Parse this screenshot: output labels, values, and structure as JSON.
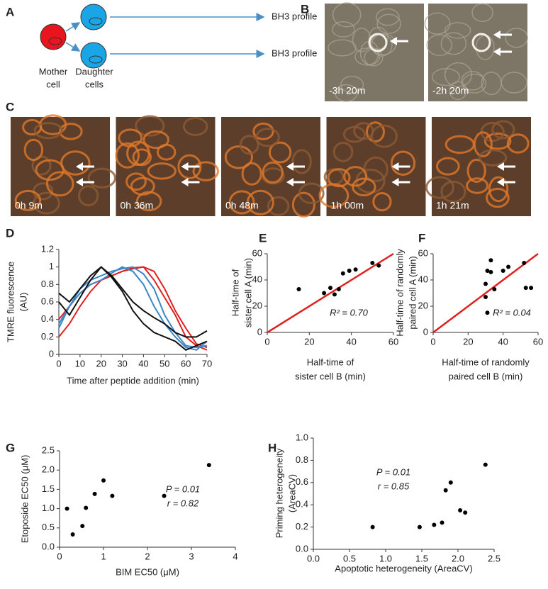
{
  "figure_a": {
    "label": "A",
    "mother": [
      "Mother",
      "cell"
    ],
    "daughter": [
      "Daughter",
      "cells"
    ],
    "outcomes": [
      "BH3 profile",
      "BH3 profile"
    ]
  },
  "figure_b": {
    "label": "B",
    "timestamps": [
      "-3h 20m",
      "-2h 20m"
    ]
  },
  "figure_c": {
    "label": "C",
    "timestamps": [
      "0h 9m",
      "0h 36m",
      "0h 48m",
      "1h 00m",
      "1h 21m"
    ]
  },
  "chart_data": [
    {
      "type": "line",
      "panel": "D",
      "xlabel": "Time after peptide addition (min)",
      "ylabel": [
        "TMRE fluorescence",
        "(AU)"
      ],
      "x": [
        0,
        5,
        10,
        15,
        20,
        25,
        30,
        35,
        40,
        45,
        50,
        55,
        60,
        65,
        70
      ],
      "series": [
        {
          "color": "#e02020",
          "values": [
            0.2,
            0.35,
            0.55,
            0.72,
            0.85,
            0.9,
            0.95,
            0.99,
            1.0,
            0.85,
            0.65,
            0.45,
            0.2,
            0.1,
            0.05
          ]
        },
        {
          "color": "#e02020",
          "values": [
            0.4,
            0.55,
            0.7,
            0.8,
            0.85,
            0.9,
            0.95,
            0.98,
            1.0,
            0.95,
            0.75,
            0.5,
            0.3,
            0.12,
            0.08
          ]
        },
        {
          "color": "#3a86c8",
          "values": [
            0.35,
            0.55,
            0.7,
            0.8,
            0.85,
            0.93,
            1.0,
            0.95,
            0.8,
            0.55,
            0.35,
            0.2,
            0.08,
            0.05,
            0.15
          ]
        },
        {
          "color": "#3a86c8",
          "values": [
            0.3,
            0.55,
            0.75,
            0.85,
            0.9,
            0.95,
            0.98,
            1.0,
            0.92,
            0.75,
            0.45,
            0.25,
            0.1,
            0.08,
            0.1
          ]
        },
        {
          "color": "#111111",
          "values": [
            0.7,
            0.6,
            0.75,
            0.9,
            1.0,
            0.9,
            0.75,
            0.6,
            0.5,
            0.42,
            0.35,
            0.25,
            0.2,
            0.2,
            0.27
          ]
        },
        {
          "color": "#111111",
          "values": [
            0.6,
            0.45,
            0.65,
            0.85,
            1.0,
            0.88,
            0.72,
            0.5,
            0.35,
            0.25,
            0.2,
            0.15,
            0.05,
            0.1,
            0.15
          ]
        }
      ],
      "xlim": [
        0,
        70
      ],
      "ylim": [
        0,
        1.2
      ],
      "xticks": [
        0,
        10,
        20,
        30,
        40,
        50,
        60,
        70
      ],
      "yticks": [
        0,
        0.2,
        0.4,
        0.6,
        0.8,
        1,
        1.2
      ]
    },
    {
      "type": "scatter",
      "panel": "E",
      "xlabel": [
        "Half-time of",
        "sister cell B (min)"
      ],
      "ylabel": [
        "Half-time of",
        "sister cell A (min)"
      ],
      "x": [
        15,
        27,
        30,
        32,
        34,
        36,
        39,
        42,
        50,
        53
      ],
      "values": [
        33,
        30,
        34,
        29,
        33,
        45,
        47,
        48,
        53,
        51
      ],
      "color": "#000000",
      "fit_line": {
        "x": [
          0,
          60
        ],
        "y": [
          0,
          60
        ],
        "color": "#e02020"
      },
      "annotations": [
        "R² = 0.70"
      ],
      "xlim": [
        0,
        60
      ],
      "ylim": [
        0,
        60
      ],
      "xticks": [
        0,
        20,
        40,
        60
      ],
      "yticks": [
        0,
        20,
        40,
        60
      ]
    },
    {
      "type": "scatter",
      "panel": "F",
      "xlabel": [
        "Half-time of randomly",
        "paired cell B (min)"
      ],
      "ylabel": [
        "Half-time of randomly",
        "paired cell A (min)"
      ],
      "x": [
        30,
        30,
        31,
        31,
        33,
        33,
        35,
        40,
        43,
        52,
        53,
        56
      ],
      "values": [
        37,
        27,
        15,
        47,
        55,
        46,
        33,
        47,
        50,
        53,
        34,
        34
      ],
      "color": "#000000",
      "fit_line": {
        "x": [
          0,
          60
        ],
        "y": [
          0,
          60
        ],
        "color": "#e02020"
      },
      "annotations": [
        "R² = 0.04"
      ],
      "xlim": [
        0,
        60
      ],
      "ylim": [
        0,
        60
      ],
      "xticks": [
        0,
        20,
        40,
        60
      ],
      "yticks": [
        0,
        20,
        40,
        60
      ]
    },
    {
      "type": "scatter",
      "panel": "G",
      "xlabel": "BIM EC50 (μM)",
      "ylabel": [
        "Etoposide EC50 (μM)"
      ],
      "x": [
        0.17,
        0.3,
        0.52,
        0.6,
        0.8,
        1.0,
        1.2,
        2.38,
        3.4
      ],
      "values": [
        1.0,
        0.33,
        0.55,
        1.02,
        1.38,
        1.73,
        1.33,
        1.33,
        2.13
      ],
      "color": "#000000",
      "annotations": [
        "P = 0.01",
        "r = 0.82"
      ],
      "xlim": [
        0,
        4
      ],
      "ylim": [
        0,
        2.5
      ],
      "xticks": [
        0,
        1,
        2,
        3,
        4
      ],
      "yticks": [
        {
          "value": 0,
          "label": "0.0"
        },
        0.5,
        {
          "value": 1,
          "label": "1.0"
        },
        1.5,
        {
          "value": 2,
          "label": "2.0"
        },
        2.5
      ]
    },
    {
      "type": "scatter",
      "panel": "H",
      "xlabel": "Apoptotic heterogeneity (AreaCV)",
      "ylabel": [
        "Priming heterogeneity",
        "(AreaCV)"
      ],
      "x": [
        0.82,
        1.47,
        1.67,
        1.78,
        1.83,
        1.9,
        2.03,
        2.1,
        2.38
      ],
      "values": [
        0.2,
        0.2,
        0.22,
        0.24,
        0.53,
        0.6,
        0.35,
        0.33,
        0.76
      ],
      "color": "#000000",
      "annotations": [
        "P = 0.01",
        "r = 0.85"
      ],
      "xlim": [
        0,
        2.5
      ],
      "ylim": [
        0,
        1
      ],
      "xticks": [
        {
          "value": 0,
          "label": "0.0"
        },
        0.5,
        {
          "value": 1,
          "label": "1.0"
        },
        1.5,
        {
          "value": 2,
          "label": "2.0"
        },
        2.5
      ],
      "yticks": [
        {
          "value": 0,
          "label": "0.0"
        },
        0.2,
        0.4,
        0.6,
        0.8,
        {
          "value": 1,
          "label": "1.0"
        }
      ]
    }
  ]
}
